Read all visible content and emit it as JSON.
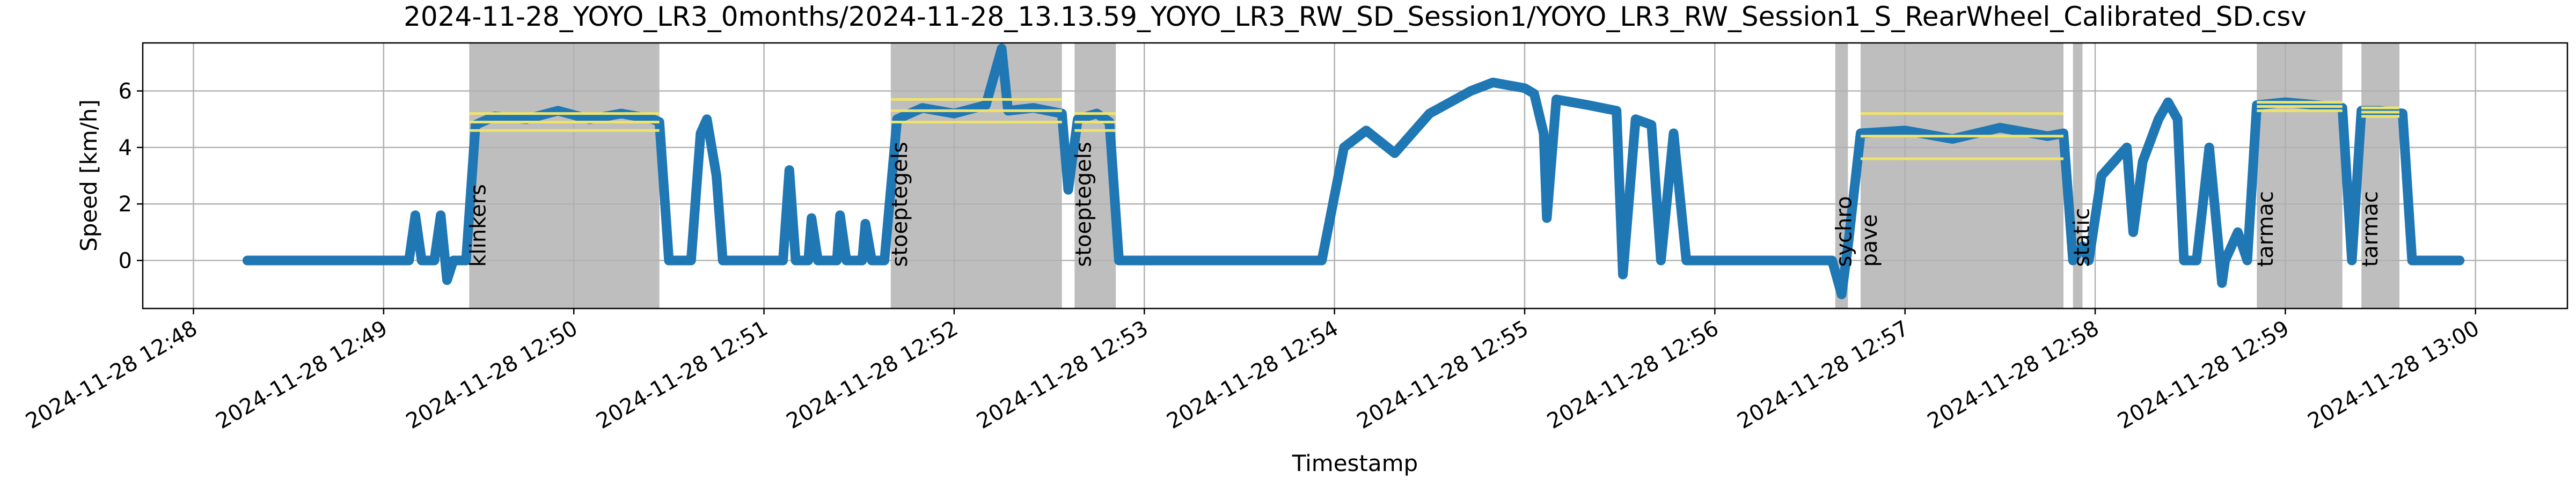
{
  "chart_data": {
    "type": "line",
    "title": "2024-11-28_YOYO_LR3_0months/2024-11-28_13.13.59_YOYO_LR3_RW_SD_Session1/YOYO_LR3_RW_Session1_S_RearWheel_Calibrated_SD.csv",
    "x_label": "Timestamp",
    "y_label": "Speed [km/h]",
    "color": "#1f77b4",
    "span_color": "#bebebe",
    "level_color": "#f0e36a",
    "grid": true,
    "xlim": [
      "2024-11-28 12:47:44",
      "2024-11-28 13:00:29"
    ],
    "xticks": [
      "2024-11-28 12:48",
      "2024-11-28 12:49",
      "2024-11-28 12:50",
      "2024-11-28 12:51",
      "2024-11-28 12:52",
      "2024-11-28 12:53",
      "2024-11-28 12:54",
      "2024-11-28 12:55",
      "2024-11-28 12:56",
      "2024-11-28 12:57",
      "2024-11-28 12:58",
      "2024-11-28 12:59",
      "2024-11-28 13:00"
    ],
    "ylim": [
      -1.7,
      7.7
    ],
    "yticks": [
      0,
      2,
      4,
      6
    ],
    "spans": [
      {
        "label": "klinkers",
        "start": "2024-11-28 12:49:27",
        "end": "2024-11-28 12:50:27",
        "lines": [
          5.2,
          4.9,
          4.6
        ]
      },
      {
        "label": "stoeptegels",
        "start": "2024-11-28 12:51:40",
        "end": "2024-11-28 12:52:34",
        "lines": [
          5.7,
          5.3,
          4.9
        ]
      },
      {
        "label": "stoeptegels",
        "start": "2024-11-28 12:52:38",
        "end": "2024-11-28 12:52:51",
        "lines": [
          5.2,
          4.9,
          4.6
        ]
      },
      {
        "label": "sychro",
        "start": "2024-11-28 12:56:38",
        "end": "2024-11-28 12:56:42",
        "lines": []
      },
      {
        "label": "pave",
        "start": "2024-11-28 12:56:46",
        "end": "2024-11-28 12:57:50",
        "lines": [
          5.2,
          4.4,
          3.6
        ]
      },
      {
        "label": "static",
        "start": "2024-11-28 12:57:53",
        "end": "2024-11-28 12:57:56",
        "lines": []
      },
      {
        "label": "tarmac",
        "start": "2024-11-28 12:58:51",
        "end": "2024-11-28 12:59:18",
        "lines": [
          5.6,
          5.45,
          5.3
        ]
      },
      {
        "label": "tarmac",
        "start": "2024-11-28 12:59:24",
        "end": "2024-11-28 12:59:36",
        "lines": [
          5.4,
          5.25,
          5.1
        ]
      }
    ],
    "x": [
      "2024-11-28 12:48:17",
      "2024-11-28 12:48:40",
      "2024-11-28 12:49:08",
      "2024-11-28 12:49:10",
      "2024-11-28 12:49:12",
      "2024-11-28 12:49:16",
      "2024-11-28 12:49:18",
      "2024-11-28 12:49:20",
      "2024-11-28 12:49:22",
      "2024-11-28 12:49:26",
      "2024-11-28 12:49:29",
      "2024-11-28 12:49:35",
      "2024-11-28 12:49:45",
      "2024-11-28 12:49:55",
      "2024-11-28 12:50:05",
      "2024-11-28 12:50:15",
      "2024-11-28 12:50:25",
      "2024-11-28 12:50:27",
      "2024-11-28 12:50:30",
      "2024-11-28 12:50:37",
      "2024-11-28 12:50:40",
      "2024-11-28 12:50:42",
      "2024-11-28 12:50:45",
      "2024-11-28 12:50:47",
      "2024-11-28 12:51:06",
      "2024-11-28 12:51:08",
      "2024-11-28 12:51:10",
      "2024-11-28 12:51:14",
      "2024-11-28 12:51:15",
      "2024-11-28 12:51:17",
      "2024-11-28 12:51:23",
      "2024-11-28 12:51:24",
      "2024-11-28 12:51:26",
      "2024-11-28 12:51:31",
      "2024-11-28 12:51:32",
      "2024-11-28 12:51:34",
      "2024-11-28 12:51:38",
      "2024-11-28 12:51:42",
      "2024-11-28 12:51:50",
      "2024-11-28 12:52:00",
      "2024-11-28 12:52:10",
      "2024-11-28 12:52:15",
      "2024-11-28 12:52:17",
      "2024-11-28 12:52:25",
      "2024-11-28 12:52:34",
      "2024-11-28 12:52:36",
      "2024-11-28 12:52:39",
      "2024-11-28 12:52:45",
      "2024-11-28 12:52:49",
      "2024-11-28 12:52:52",
      "2024-11-28 12:53:00",
      "2024-11-28 12:53:30",
      "2024-11-28 12:53:56",
      "2024-11-28 12:54:03",
      "2024-11-28 12:54:10",
      "2024-11-28 12:54:19",
      "2024-11-28 12:54:30",
      "2024-11-28 12:54:43",
      "2024-11-28 12:54:50",
      "2024-11-28 12:55:00",
      "2024-11-28 12:55:03",
      "2024-11-28 12:55:06",
      "2024-11-28 12:55:07",
      "2024-11-28 12:55:10",
      "2024-11-28 12:55:20",
      "2024-11-28 12:55:29",
      "2024-11-28 12:55:31",
      "2024-11-28 12:55:35",
      "2024-11-28 12:55:40",
      "2024-11-28 12:55:43",
      "2024-11-28 12:55:47",
      "2024-11-28 12:55:51",
      "2024-11-28 12:56:20",
      "2024-11-28 12:56:37",
      "2024-11-28 12:56:40",
      "2024-11-28 12:56:42",
      "2024-11-28 12:56:46",
      "2024-11-28 12:57:00",
      "2024-11-28 12:57:15",
      "2024-11-28 12:57:30",
      "2024-11-28 12:57:45",
      "2024-11-28 12:57:50",
      "2024-11-28 12:57:53",
      "2024-11-28 12:57:56",
      "2024-11-28 12:57:58",
      "2024-11-28 12:58:02",
      "2024-11-28 12:58:10",
      "2024-11-28 12:58:12",
      "2024-11-28 12:58:15",
      "2024-11-28 12:58:20",
      "2024-11-28 12:58:23",
      "2024-11-28 12:58:26",
      "2024-11-28 12:58:28",
      "2024-11-28 12:58:32",
      "2024-11-28 12:58:36",
      "2024-11-28 12:58:40",
      "2024-11-28 12:58:41",
      "2024-11-28 12:58:45",
      "2024-11-28 12:58:48",
      "2024-11-28 12:58:51",
      "2024-11-28 12:59:00",
      "2024-11-28 12:59:10",
      "2024-11-28 12:59:18",
      "2024-11-28 12:59:21",
      "2024-11-28 12:59:24",
      "2024-11-28 12:59:30",
      "2024-11-28 12:59:37",
      "2024-11-28 12:59:40",
      "2024-11-28 12:59:55"
    ],
    "values": [
      0,
      0,
      0,
      1.6,
      0,
      0,
      1.6,
      -0.7,
      0,
      0,
      4.8,
      5.1,
      5.0,
      5.3,
      5.0,
      5.2,
      5.0,
      4.9,
      0,
      0,
      4.5,
      5.0,
      3.0,
      0,
      0,
      3.2,
      0,
      0,
      1.5,
      0,
      0,
      1.6,
      0,
      0,
      1.3,
      0,
      0,
      5.0,
      5.4,
      5.2,
      5.5,
      7.5,
      5.3,
      5.4,
      5.2,
      2.5,
      5.0,
      5.2,
      4.9,
      0,
      0,
      0,
      0,
      4.0,
      4.6,
      3.8,
      5.2,
      6.0,
      6.3,
      6.1,
      5.9,
      4.5,
      1.5,
      5.7,
      5.5,
      5.3,
      -0.5,
      5.0,
      4.8,
      0,
      4.5,
      0,
      0,
      0,
      -1.2,
      0.5,
      4.5,
      4.6,
      4.3,
      4.7,
      4.4,
      4.5,
      0,
      0.5,
      0,
      3.0,
      4.0,
      1.0,
      3.5,
      5.0,
      5.6,
      5.0,
      0,
      0,
      4.0,
      -0.8,
      0,
      1.0,
      0,
      5.5,
      5.6,
      5.5,
      5.4,
      0,
      5.3,
      5.3,
      5.2,
      0,
      0
    ]
  }
}
